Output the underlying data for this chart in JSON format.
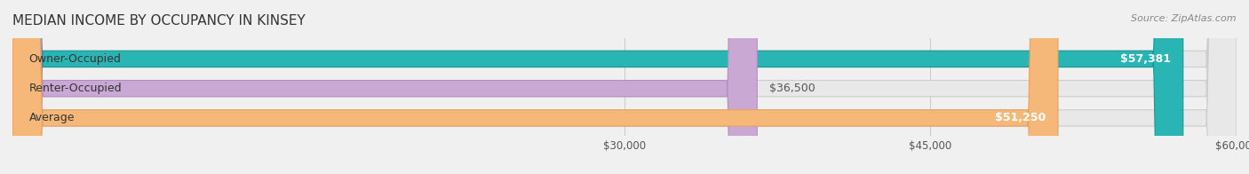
{
  "title": "MEDIAN INCOME BY OCCUPANCY IN KINSEY",
  "source": "Source: ZipAtlas.com",
  "categories": [
    "Owner-Occupied",
    "Renter-Occupied",
    "Average"
  ],
  "values": [
    57381,
    36500,
    51250
  ],
  "value_labels": [
    "$57,381",
    "$36,500",
    "$51,250"
  ],
  "bar_colors": [
    "#2ab5b5",
    "#c9a8d4",
    "#f5b878"
  ],
  "bar_edge_colors": [
    "#1a9595",
    "#b090c0",
    "#e8a060"
  ],
  "xmin": 0,
  "xmax": 60000,
  "xticks": [
    30000,
    45000,
    60000
  ],
  "xtick_labels": [
    "$30,000",
    "$45,000",
    "$60,000"
  ],
  "background_color": "#f0f0f0",
  "bar_bg_color": "#e8e8e8",
  "title_fontsize": 11,
  "source_fontsize": 8,
  "label_fontsize": 9,
  "value_fontsize": 9
}
